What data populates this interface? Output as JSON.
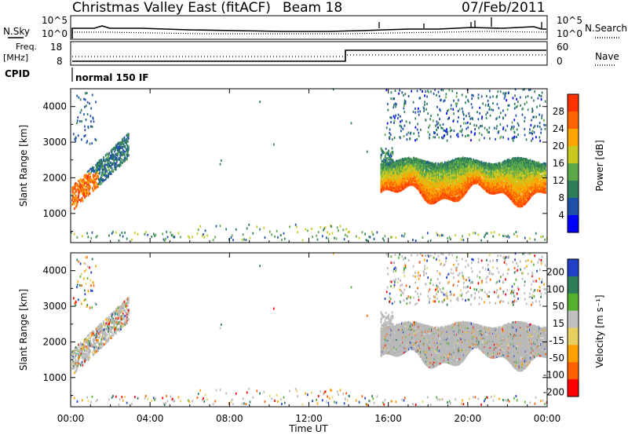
{
  "header": {
    "title": "Christmas Valley East (fitACF)",
    "beam": "Beam 18",
    "date": "07/Feb/2011"
  },
  "panels": {
    "nsky": {
      "label": "N.Sky",
      "right_label": "N.Search",
      "ticks_left": [
        "10^5",
        "10^0"
      ],
      "ticks_right": [
        "10^5",
        "10^0"
      ]
    },
    "freq": {
      "label": "Freq.",
      "unit": "[MHz]",
      "right_label": "Nave",
      "ticks_left": [
        "18",
        "8"
      ],
      "ticks_right": [
        "60",
        "0"
      ]
    },
    "cpid": {
      "label": "CPID",
      "value": "normal 150 IF"
    }
  },
  "colors": {
    "power_scale": [
      "#0000ff",
      "#1e50a8",
      "#2e7d5a",
      "#5aa84a",
      "#c8c81e",
      "#ffa500",
      "#ff6400",
      "#ff3200",
      "#ff0000"
    ],
    "velocity_scale": [
      "#2040c8",
      "#2e7d5a",
      "#55b030",
      "#c0c0c0",
      "#e8d060",
      "#ffa000",
      "#ff6000",
      "#ff0000"
    ],
    "ground_scatter": "#b8b8b8"
  },
  "chart_data": [
    {
      "type": "heatmap",
      "name": "power",
      "ylabel": "Slant Range [km]",
      "ylim": [
        180,
        4500
      ],
      "yticks": [
        "4000",
        "3000",
        "2000",
        "1000"
      ],
      "xlim_hours": [
        0,
        24
      ],
      "colorbar": {
        "label": "Power [dB]",
        "ticks": [
          "28",
          "24",
          "20",
          "16",
          "12",
          "8",
          "4"
        ],
        "range": [
          0,
          32
        ]
      },
      "regions": [
        {
          "t": [
            0.05,
            1.35
          ],
          "range_km": [
            1200,
            2100
          ],
          "db": 26
        },
        {
          "t": [
            0.4,
            2.9
          ],
          "range_km": [
            850,
            3200
          ],
          "db": 8
        },
        {
          "t": [
            15.6,
            23.9
          ],
          "range_km": [
            1350,
            2700
          ],
          "db": 24
        },
        {
          "t": [
            15.8,
            23.9
          ],
          "range_km": [
            3000,
            4450
          ],
          "db": 8
        }
      ]
    },
    {
      "type": "heatmap",
      "name": "velocity",
      "ylabel": "Slant Range [km]",
      "ylim": [
        180,
        4500
      ],
      "yticks": [
        "4000",
        "3000",
        "2000",
        "1000"
      ],
      "xlim_hours": [
        0,
        24
      ],
      "xticks": [
        "00:00",
        "04:00",
        "08:00",
        "12:00",
        "16:00",
        "20:00",
        "00:00"
      ],
      "xlabel": "Time UT",
      "colorbar": {
        "label": "Velocity [m s⁻¹]",
        "ticks": [
          "200",
          "100",
          "50",
          "15",
          "-15",
          "-50",
          "-100",
          "-200"
        ]
      }
    }
  ]
}
